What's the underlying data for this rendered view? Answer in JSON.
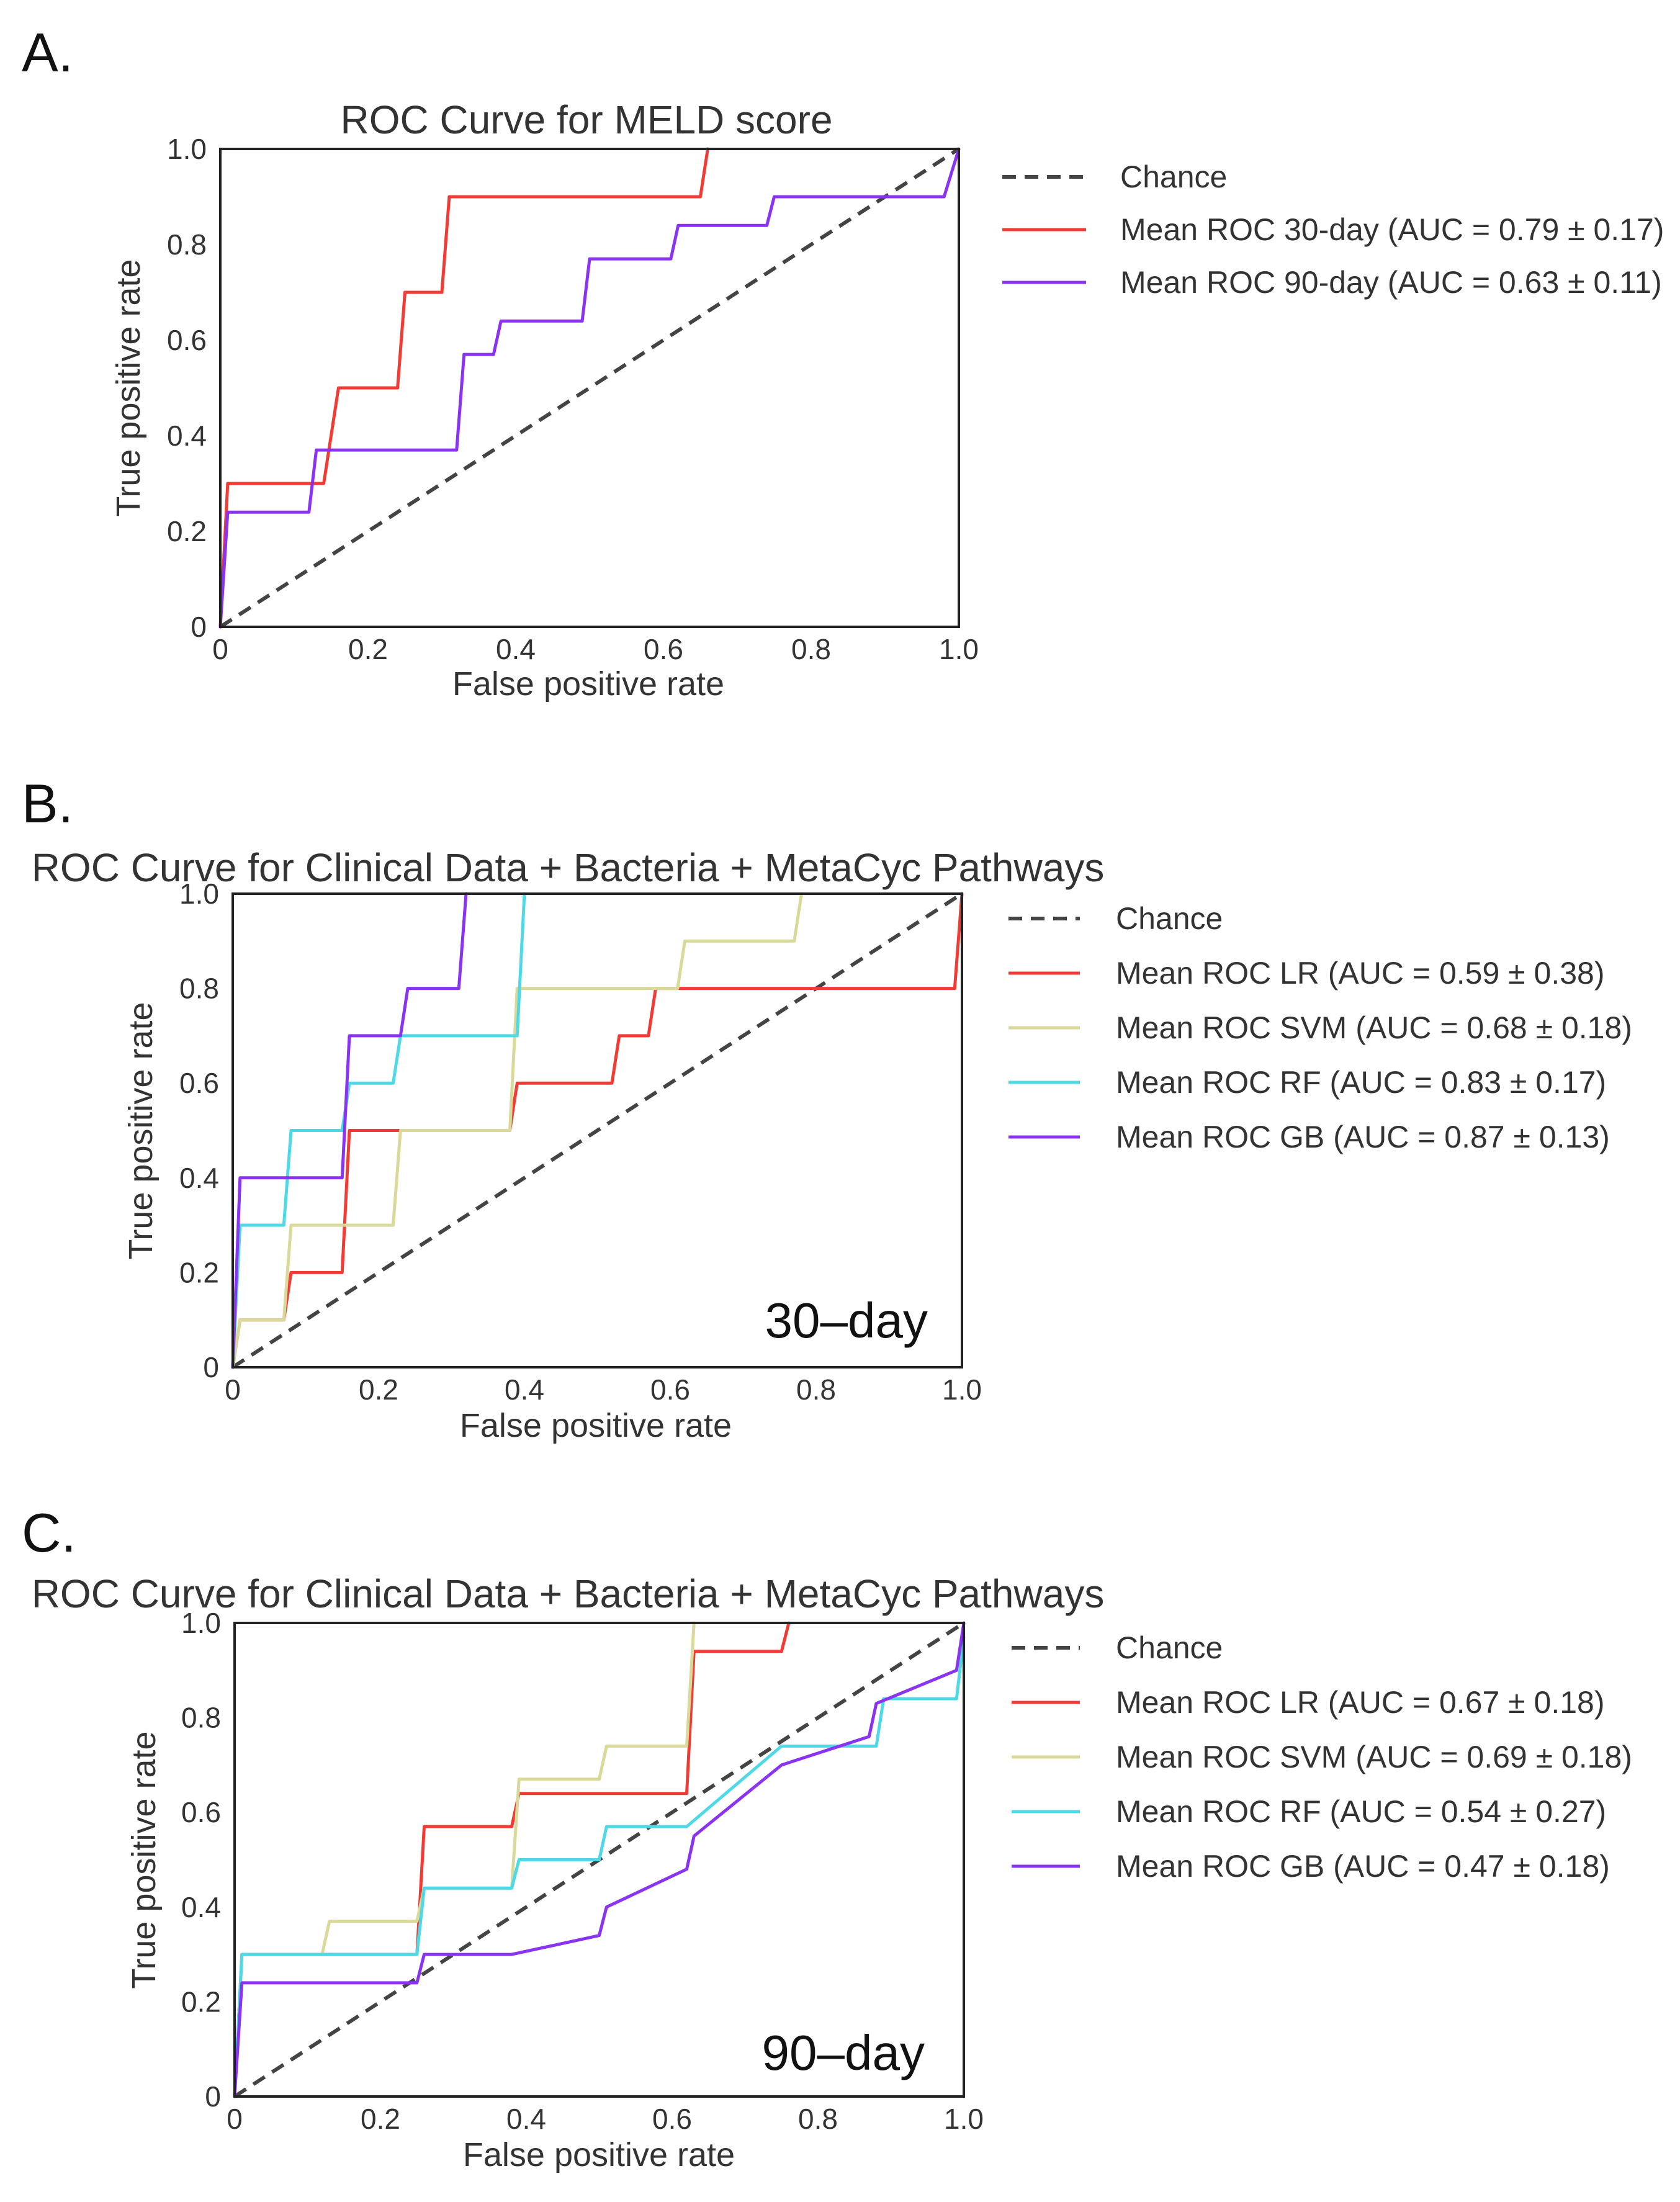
{
  "chart_data": [
    {
      "panel": "A.",
      "type": "line",
      "title": "ROC Curve for MELD score",
      "xlabel": "False positive rate",
      "ylabel": "True positive rate",
      "xlim": [
        0,
        1
      ],
      "ylim": [
        0,
        1
      ],
      "xticks": [
        {
          "value": 0,
          "label": "0"
        },
        {
          "value": 0.2,
          "label": "0.2"
        },
        {
          "value": 0.4,
          "label": "0.4"
        },
        {
          "value": 0.6,
          "label": "0.6"
        },
        {
          "value": 0.8,
          "label": "0.8"
        },
        {
          "value": 1.0,
          "label": "1.0"
        }
      ],
      "yticks": [
        {
          "value": 0,
          "label": "0"
        },
        {
          "value": 0.2,
          "label": "0.2"
        },
        {
          "value": 0.4,
          "label": "0.4"
        },
        {
          "value": 0.6,
          "label": "0.6"
        },
        {
          "value": 0.8,
          "label": "0.8"
        },
        {
          "value": 1.0,
          "label": "1.0"
        }
      ],
      "annotation": "",
      "series": [
        {
          "name": "Chance",
          "label": "Chance",
          "color": "#444444",
          "dashed": true,
          "x": [
            0,
            1
          ],
          "y": [
            0,
            1
          ]
        },
        {
          "name": "Mean ROC 30-day",
          "label": "Mean ROC 30-day  (AUC = 0.79 ± 0.17)",
          "color": "#f23b34",
          "dashed": false,
          "x": [
            0,
            0.01,
            0.14,
            0.16,
            0.24,
            0.25,
            0.3,
            0.31,
            0.65,
            0.66
          ],
          "y": [
            0,
            0.3,
            0.3,
            0.5,
            0.5,
            0.7,
            0.7,
            0.9,
            0.9,
            1.0
          ]
        },
        {
          "name": "Mean ROC 90-day",
          "label": "Mean ROC 90-day (AUC = 0.63 ± 0.11)",
          "color": "#8a33f2",
          "dashed": false,
          "x": [
            0,
            0.01,
            0.12,
            0.13,
            0.32,
            0.33,
            0.37,
            0.38,
            0.49,
            0.5,
            0.61,
            0.62,
            0.74,
            0.75,
            0.98,
            1.0
          ],
          "y": [
            0,
            0.24,
            0.24,
            0.37,
            0.37,
            0.57,
            0.57,
            0.64,
            0.64,
            0.77,
            0.77,
            0.84,
            0.84,
            0.9,
            0.9,
            1.0
          ]
        }
      ]
    },
    {
      "panel": "B.",
      "type": "line",
      "title": "ROC Curve for Clinical Data + Bacteria + MetaCyc Pathways",
      "xlabel": "False positive rate",
      "ylabel": "True positive rate",
      "xlim": [
        0,
        1
      ],
      "ylim": [
        0,
        1
      ],
      "xticks": [
        {
          "value": 0,
          "label": "0"
        },
        {
          "value": 0.2,
          "label": "0.2"
        },
        {
          "value": 0.4,
          "label": "0.4"
        },
        {
          "value": 0.6,
          "label": "0.6"
        },
        {
          "value": 0.8,
          "label": "0.8"
        },
        {
          "value": 1.0,
          "label": "1.0"
        }
      ],
      "yticks": [
        {
          "value": 0,
          "label": "0"
        },
        {
          "value": 0.2,
          "label": "0.2"
        },
        {
          "value": 0.4,
          "label": "0.4"
        },
        {
          "value": 0.6,
          "label": "0.6"
        },
        {
          "value": 0.8,
          "label": "0.8"
        },
        {
          "value": 1.0,
          "label": "1.0"
        }
      ],
      "annotation": "30–day",
      "series": [
        {
          "name": "Chance",
          "label": "Chance",
          "color": "#444444",
          "dashed": true,
          "x": [
            0,
            1
          ],
          "y": [
            0,
            1
          ]
        },
        {
          "name": "Mean ROC LR",
          "label": "Mean ROC LR (AUC = 0.59 ± 0.38)",
          "color": "#f23b34",
          "dashed": false,
          "x": [
            0,
            0.01,
            0.07,
            0.08,
            0.15,
            0.16,
            0.38,
            0.39,
            0.52,
            0.53,
            0.57,
            0.58,
            0.63,
            0.64,
            0.99,
            1.0
          ],
          "y": [
            0,
            0.1,
            0.1,
            0.2,
            0.2,
            0.5,
            0.5,
            0.6,
            0.6,
            0.7,
            0.7,
            0.8,
            0.8,
            0.8,
            0.8,
            1.0
          ]
        },
        {
          "name": "Mean ROC SVM",
          "label": "Mean ROC SVM (AUC = 0.68 ± 0.18)",
          "color": "#d9d99a",
          "dashed": false,
          "x": [
            0,
            0.01,
            0.07,
            0.08,
            0.22,
            0.23,
            0.38,
            0.39,
            0.61,
            0.62,
            0.77,
            0.78
          ],
          "y": [
            0,
            0.1,
            0.1,
            0.3,
            0.3,
            0.5,
            0.5,
            0.8,
            0.8,
            0.9,
            0.9,
            1.0
          ]
        },
        {
          "name": "Mean ROC RF",
          "label": "Mean ROC RF (AUC = 0.83 ± 0.17)",
          "color": "#4ed9e6",
          "dashed": false,
          "x": [
            0,
            0.01,
            0.07,
            0.08,
            0.15,
            0.16,
            0.22,
            0.23,
            0.39,
            0.4
          ],
          "y": [
            0,
            0.3,
            0.3,
            0.5,
            0.5,
            0.6,
            0.6,
            0.7,
            0.7,
            1.0
          ]
        },
        {
          "name": "Mean ROC GB",
          "label": "Mean ROC GB (AUC = 0.87 ± 0.13)",
          "color": "#8a33f2",
          "dashed": false,
          "x": [
            0,
            0.01,
            0.15,
            0.16,
            0.23,
            0.24,
            0.31,
            0.32
          ],
          "y": [
            0,
            0.4,
            0.4,
            0.7,
            0.7,
            0.8,
            0.8,
            1.0
          ]
        }
      ]
    },
    {
      "panel": "C.",
      "type": "line",
      "title": "ROC Curve for Clinical Data + Bacteria + MetaCyc Pathways",
      "xlabel": "False positive rate",
      "ylabel": "True positive rate",
      "xlim": [
        0,
        1
      ],
      "ylim": [
        0,
        1
      ],
      "xticks": [
        {
          "value": 0,
          "label": "0"
        },
        {
          "value": 0.2,
          "label": "0.2"
        },
        {
          "value": 0.4,
          "label": "0.4"
        },
        {
          "value": 0.6,
          "label": "0.6"
        },
        {
          "value": 0.8,
          "label": "0.8"
        },
        {
          "value": 1.0,
          "label": "1.0"
        }
      ],
      "yticks": [
        {
          "value": 0,
          "label": "0"
        },
        {
          "value": 0.2,
          "label": "0.2"
        },
        {
          "value": 0.4,
          "label": "0.4"
        },
        {
          "value": 0.6,
          "label": "0.6"
        },
        {
          "value": 0.8,
          "label": "0.8"
        },
        {
          "value": 1.0,
          "label": "1.0"
        }
      ],
      "annotation": "90–day",
      "series": [
        {
          "name": "Chance",
          "label": "Chance",
          "color": "#444444",
          "dashed": true,
          "x": [
            0,
            1
          ],
          "y": [
            0,
            1
          ]
        },
        {
          "name": "Mean ROC LR",
          "label": "Mean ROC LR (AUC = 0.67 ± 0.18)",
          "color": "#f23b34",
          "dashed": false,
          "x": [
            0,
            0.01,
            0.25,
            0.26,
            0.38,
            0.39,
            0.62,
            0.63,
            0.75,
            0.76
          ],
          "y": [
            0,
            0.3,
            0.3,
            0.57,
            0.57,
            0.64,
            0.64,
            0.94,
            0.94,
            1.0
          ]
        },
        {
          "name": "Mean ROC SVM",
          "label": "Mean ROC SVM (AUC = 0.69 ± 0.18)",
          "color": "#d9d99a",
          "dashed": false,
          "x": [
            0,
            0.01,
            0.12,
            0.13,
            0.25,
            0.26,
            0.38,
            0.39,
            0.5,
            0.51,
            0.62,
            0.63
          ],
          "y": [
            0,
            0.3,
            0.3,
            0.37,
            0.37,
            0.44,
            0.44,
            0.67,
            0.67,
            0.74,
            0.74,
            1.0
          ]
        },
        {
          "name": "Mean ROC RF",
          "label": "Mean ROC RF (AUC = 0.54 ± 0.27)",
          "color": "#4ed9e6",
          "dashed": false,
          "x": [
            0,
            0.01,
            0.25,
            0.26,
            0.38,
            0.39,
            0.5,
            0.51,
            0.62,
            0.75,
            0.88,
            0.89,
            0.99,
            1.0
          ],
          "y": [
            0,
            0.3,
            0.3,
            0.44,
            0.44,
            0.5,
            0.5,
            0.57,
            0.57,
            0.74,
            0.74,
            0.84,
            0.84,
            0.97
          ]
        },
        {
          "name": "Mean ROC GB",
          "label": "Mean ROC GB (AUC = 0.47 ± 0.18)",
          "color": "#8a33f2",
          "dashed": false,
          "x": [
            0,
            0.01,
            0.25,
            0.26,
            0.38,
            0.5,
            0.51,
            0.62,
            0.63,
            0.75,
            0.87,
            0.88,
            0.99,
            1.0
          ],
          "y": [
            0,
            0.24,
            0.24,
            0.3,
            0.3,
            0.34,
            0.4,
            0.48,
            0.55,
            0.7,
            0.76,
            0.83,
            0.9,
            1.0
          ]
        }
      ]
    }
  ]
}
